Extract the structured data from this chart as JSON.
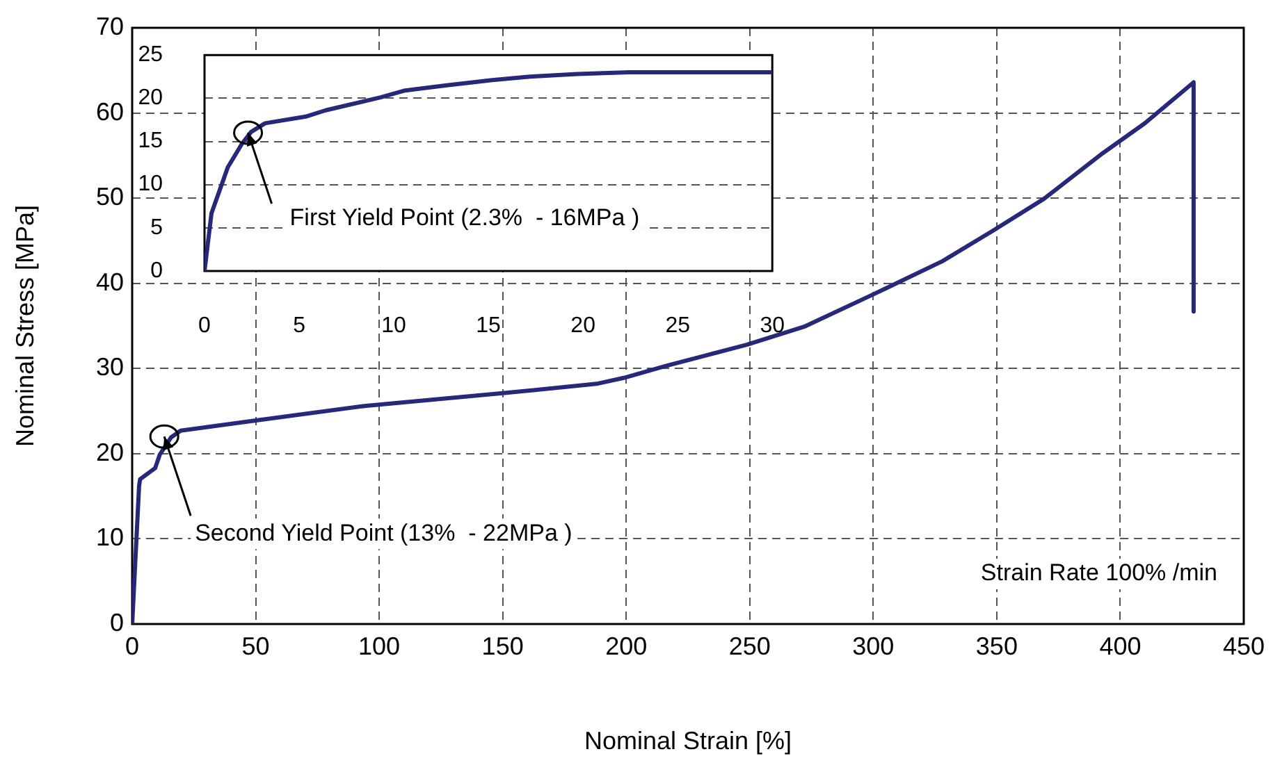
{
  "chart_data": [
    {
      "type": "line",
      "xlabel": "Nominal Strain [%]",
      "ylabel": "Nominal Stress [MPa]",
      "xlim": [
        0,
        450
      ],
      "ylim": [
        0,
        70
      ],
      "xticks": [
        0,
        50,
        100,
        150,
        200,
        250,
        300,
        350,
        400,
        450
      ],
      "yticks": [
        0,
        10,
        20,
        30,
        40,
        50,
        60,
        70
      ],
      "grid": true,
      "marker": "none",
      "line_style": "solid",
      "series": [
        {
          "color": "#27287a",
          "x": [
            0,
            2.8,
            3.2,
            9.3,
            11.2,
            15.7,
            19.6,
            47.6,
            94,
            150,
            188,
            199,
            216,
            249,
            272,
            300,
            328,
            348,
            369,
            393,
            410,
            429.7,
            429.7
          ],
          "values": [
            0,
            16.2,
            17,
            18.3,
            19.9,
            21.9,
            22.7,
            23.8,
            25.6,
            27.1,
            28.2,
            28.9,
            30.3,
            32.8,
            34.9,
            38.7,
            42.6,
            46.1,
            49.9,
            55.3,
            58.8,
            63.6,
            36.7
          ]
        }
      ],
      "annotations": [
        {
          "text": "Second Yield Point (13%  - 22MPa )",
          "x": 13,
          "y": 22
        },
        "Strain Rate 100% /min"
      ]
    },
    {
      "type": "line",
      "xlim": [
        0,
        30
      ],
      "ylim": [
        0,
        25
      ],
      "xticks": [
        0,
        5,
        10,
        15,
        20,
        25,
        30
      ],
      "yticks": [
        0,
        5,
        10,
        15,
        20,
        25
      ],
      "grid": "y",
      "marker": "none",
      "line_style": "solid",
      "series": [
        {
          "color": "#27287a",
          "x": [
            0,
            0.37,
            1.23,
            1.97,
            2.46,
            3.2,
            5.4,
            6.4,
            9.3,
            10.6,
            12.8,
            15.2,
            17.2,
            19.7,
            22.4,
            30
          ],
          "values": [
            0,
            6.7,
            12,
            14.7,
            16.1,
            17.1,
            17.9,
            18.6,
            20.1,
            20.9,
            21.5,
            22.1,
            22.5,
            22.8,
            23,
            23
          ]
        }
      ],
      "annotations": [
        {
          "text": "First Yield Point (2.3%  - 16MPa )",
          "x": 2.3,
          "y": 16
        }
      ]
    }
  ]
}
